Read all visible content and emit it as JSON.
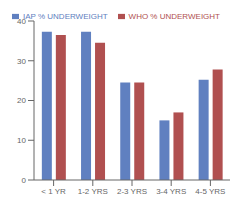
{
  "chart_data": {
    "type": "bar",
    "categories": [
      "< 1 YR",
      "1-2 YRS",
      "2-3 YRS",
      "3-4 YRS",
      "4-5 YRS"
    ],
    "series": [
      {
        "name": "IAP % UNDERWEIGHT",
        "color": "#6080C0",
        "values": [
          37.3,
          37.3,
          24.5,
          15.0,
          25.2
        ]
      },
      {
        "name": "WHO % UNDERWEIGHT",
        "color": "#B05050",
        "values": [
          36.5,
          34.5,
          24.5,
          17.0,
          27.8
        ]
      }
    ],
    "ylim": [
      0,
      40
    ],
    "yticks": [
      0,
      10,
      20,
      30,
      40
    ],
    "grid": false,
    "legend": "upper right"
  }
}
